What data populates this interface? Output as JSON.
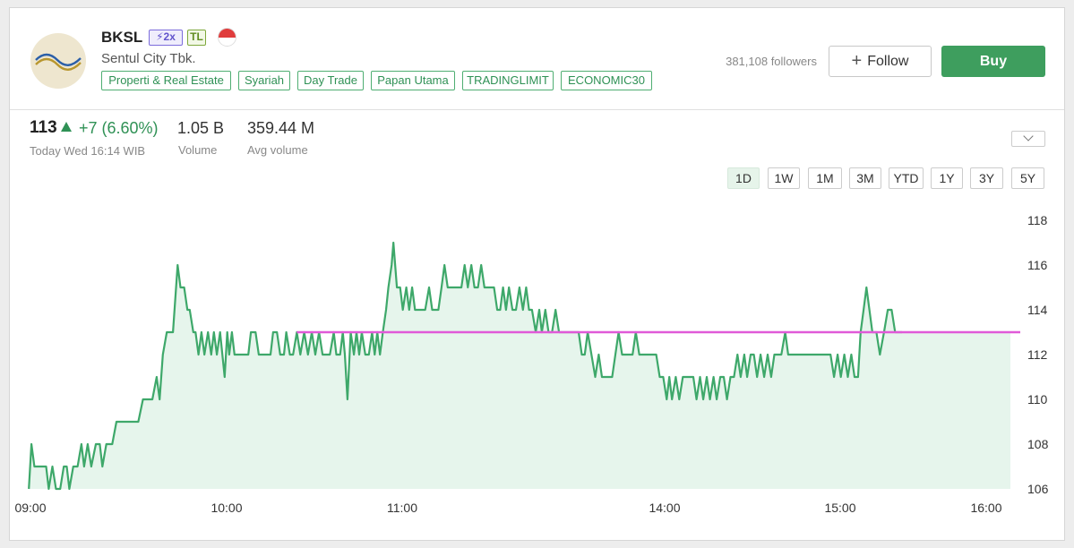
{
  "stock": {
    "ticker": "BKSL",
    "badge_margin": "⚡2x",
    "badge_tl": "TL",
    "company": "Sentul City Tbk.",
    "tags": [
      "Properti & Real Estate",
      "Syariah",
      "Day Trade",
      "Papan Utama",
      "TRADINGLIMIT",
      "ECONOMIC30"
    ],
    "followers": "381,108 followers",
    "follow_label": "Follow",
    "buy_label": "Buy",
    "price": "113",
    "change": "+7 (6.60%)",
    "time": "Today Wed 16:14 WIB",
    "volume_value": "1.05 B",
    "volume_label": "Volume",
    "avg_volume_value": "359.44 M",
    "avg_volume_label": "Avg volume"
  },
  "ranges": [
    "1D",
    "1W",
    "1M",
    "3M",
    "YTD",
    "1Y",
    "3Y",
    "5Y"
  ],
  "active_range": "1D",
  "colors": {
    "up": "#3e9e5e",
    "line": "#3ea86a",
    "fill": "#e6f5ec",
    "reference": "#e05ad8",
    "brand_blue": "#2b5fa8",
    "brand_gold": "#b8962e"
  },
  "chart_data": {
    "type": "area",
    "xlabel": "",
    "ylabel": "",
    "ylim": [
      106,
      118
    ],
    "yticks": [
      106,
      108,
      110,
      112,
      114,
      116,
      118
    ],
    "x_ticks": [
      {
        "label": "09:00",
        "minutes": 540
      },
      {
        "label": "10:00",
        "minutes": 600
      },
      {
        "label": "11:00",
        "minutes": 660
      },
      {
        "label": "14:00",
        "minutes": 750
      },
      {
        "label": "15:00",
        "minutes": 810
      },
      {
        "label": "16:00",
        "minutes": 860
      }
    ],
    "reference": {
      "value": 113,
      "from_minutes": 624,
      "to_minutes": 870
    },
    "series": [
      {
        "points": [
          [
            539.5,
            106
          ],
          [
            540.3,
            108
          ],
          [
            541.2,
            107
          ],
          [
            543.1,
            107
          ],
          [
            544.8,
            107
          ],
          [
            545.6,
            106
          ],
          [
            546.7,
            107
          ],
          [
            547.8,
            106
          ],
          [
            549.1,
            106
          ],
          [
            550.2,
            107
          ],
          [
            551.1,
            107
          ],
          [
            551.9,
            106
          ],
          [
            553.1,
            107
          ],
          [
            554.4,
            107
          ],
          [
            555.6,
            108
          ],
          [
            556.4,
            107
          ],
          [
            557.5,
            108
          ],
          [
            558.6,
            107
          ],
          [
            560.0,
            108
          ],
          [
            561.2,
            108
          ],
          [
            562.0,
            107
          ],
          [
            563.2,
            108
          ],
          [
            565.0,
            108
          ],
          [
            566.3,
            109
          ],
          [
            568.4,
            109
          ],
          [
            569.7,
            109
          ],
          [
            571.1,
            109
          ],
          [
            573.0,
            109
          ],
          [
            574.4,
            110
          ],
          [
            576.0,
            110
          ],
          [
            577.3,
            110
          ],
          [
            578.6,
            111
          ],
          [
            579.5,
            110
          ],
          [
            580.5,
            112
          ],
          [
            581.7,
            113
          ],
          [
            582.7,
            113
          ],
          [
            583.6,
            113
          ],
          [
            585.0,
            116
          ],
          [
            585.9,
            115
          ],
          [
            587.0,
            115
          ],
          [
            588.0,
            114
          ],
          [
            588.7,
            114
          ],
          [
            589.8,
            113
          ],
          [
            590.5,
            113
          ],
          [
            591.4,
            112
          ],
          [
            592.3,
            113
          ],
          [
            593.2,
            112
          ],
          [
            594.3,
            113
          ],
          [
            595.3,
            112
          ],
          [
            596.1,
            113
          ],
          [
            597.0,
            112
          ],
          [
            598.0,
            113
          ],
          [
            599.4,
            111
          ],
          [
            600.2,
            113
          ],
          [
            600.9,
            112
          ],
          [
            601.8,
            113
          ],
          [
            602.7,
            112
          ],
          [
            603.9,
            112
          ],
          [
            605.0,
            112
          ],
          [
            606.3,
            112
          ],
          [
            607.4,
            112
          ],
          [
            608.3,
            113
          ],
          [
            609.9,
            113
          ],
          [
            611.0,
            112
          ],
          [
            612.1,
            112
          ],
          [
            613.0,
            112
          ],
          [
            614.2,
            112
          ],
          [
            615.0,
            112
          ],
          [
            615.9,
            113
          ],
          [
            617.2,
            113
          ],
          [
            618.3,
            112
          ],
          [
            619.6,
            112
          ],
          [
            620.4,
            113
          ],
          [
            621.6,
            112
          ],
          [
            622.7,
            112
          ],
          [
            624.0,
            113
          ],
          [
            625.2,
            112
          ],
          [
            626.5,
            113
          ],
          [
            627.8,
            112
          ],
          [
            629.1,
            113
          ],
          [
            630.3,
            112
          ],
          [
            631.6,
            113
          ],
          [
            632.8,
            112
          ],
          [
            634.0,
            112
          ],
          [
            635.3,
            112
          ],
          [
            636.6,
            113
          ],
          [
            637.5,
            112
          ],
          [
            638.8,
            112
          ],
          [
            639.7,
            113
          ],
          [
            640.4,
            112
          ],
          [
            641.3,
            110
          ],
          [
            642.4,
            113
          ],
          [
            643.5,
            112
          ],
          [
            644.4,
            113
          ],
          [
            645.3,
            112
          ],
          [
            646.2,
            113
          ],
          [
            647.4,
            112
          ],
          [
            648.6,
            112
          ],
          [
            649.7,
            113
          ],
          [
            650.6,
            112
          ],
          [
            651.5,
            113
          ],
          [
            652.4,
            112
          ],
          [
            653.4,
            113
          ],
          [
            654.5,
            114
          ],
          [
            655.3,
            115
          ],
          [
            656.4,
            116
          ],
          [
            657.0,
            117
          ],
          [
            658.2,
            115
          ],
          [
            659.3,
            115
          ],
          [
            660.2,
            114
          ],
          [
            661.4,
            115
          ],
          [
            662.4,
            114
          ],
          [
            663.4,
            115
          ],
          [
            664.4,
            114
          ],
          [
            665.6,
            114
          ],
          [
            666.8,
            114
          ],
          [
            667.9,
            114
          ],
          [
            669.2,
            115
          ],
          [
            670.3,
            114
          ],
          [
            671.2,
            114
          ],
          [
            672.4,
            114
          ],
          [
            673.5,
            115
          ],
          [
            674.5,
            116
          ],
          [
            675.6,
            115
          ],
          [
            676.8,
            115
          ],
          [
            678.0,
            115
          ],
          [
            679.2,
            115
          ],
          [
            680.3,
            115
          ],
          [
            681.4,
            116
          ],
          [
            682.5,
            115
          ],
          [
            683.7,
            116
          ],
          [
            684.8,
            115
          ],
          [
            686.0,
            115
          ],
          [
            687.1,
            116
          ],
          [
            688.2,
            115
          ],
          [
            689.2,
            115
          ],
          [
            690.2,
            115
          ],
          [
            691.5,
            115
          ],
          [
            692.6,
            114
          ],
          [
            693.6,
            114
          ],
          [
            694.6,
            115
          ],
          [
            695.6,
            114
          ],
          [
            696.6,
            115
          ],
          [
            697.8,
            114
          ],
          [
            699.0,
            114
          ],
          [
            700.2,
            115
          ],
          [
            701.4,
            114
          ],
          [
            702.5,
            115
          ],
          [
            703.5,
            114
          ],
          [
            704.5,
            114
          ],
          [
            705.8,
            113
          ],
          [
            707.0,
            114
          ],
          [
            707.9,
            113
          ],
          [
            709.1,
            114
          ],
          [
            710.2,
            113
          ],
          [
            711.4,
            113
          ],
          [
            712.6,
            114
          ],
          [
            713.8,
            113
          ],
          [
            715.0,
            113
          ],
          [
            716.2,
            113
          ],
          [
            717.4,
            113
          ],
          [
            718.5,
            113
          ],
          [
            719.6,
            113
          ],
          [
            720.5,
            113
          ],
          [
            721.6,
            112
          ],
          [
            722.6,
            112
          ],
          [
            723.6,
            113
          ],
          [
            724.9,
            112
          ],
          [
            726.2,
            111
          ],
          [
            727.4,
            112
          ],
          [
            728.5,
            111
          ],
          [
            729.5,
            111
          ],
          [
            730.8,
            111
          ],
          [
            732.0,
            111
          ],
          [
            733.1,
            112
          ],
          [
            734.2,
            113
          ],
          [
            735.4,
            112
          ],
          [
            736.6,
            112
          ],
          [
            737.8,
            112
          ],
          [
            739.0,
            112
          ],
          [
            740.1,
            113
          ],
          [
            741.3,
            112
          ],
          [
            742.5,
            112
          ],
          [
            743.6,
            112
          ],
          [
            744.8,
            112
          ],
          [
            745.9,
            112
          ],
          [
            747.1,
            112
          ],
          [
            748.3,
            111
          ],
          [
            749.5,
            111
          ],
          [
            750.7,
            110
          ],
          [
            751.6,
            111
          ],
          [
            752.5,
            110
          ],
          [
            753.8,
            111
          ],
          [
            755.0,
            110
          ],
          [
            756.2,
            111
          ],
          [
            757.4,
            111
          ],
          [
            758.6,
            111
          ],
          [
            759.8,
            111
          ],
          [
            760.9,
            110
          ],
          [
            762.1,
            111
          ],
          [
            763.2,
            110
          ],
          [
            764.4,
            111
          ],
          [
            765.5,
            110
          ],
          [
            766.7,
            111
          ],
          [
            767.8,
            110
          ],
          [
            769.0,
            111
          ],
          [
            770.2,
            111
          ],
          [
            771.3,
            110
          ],
          [
            772.5,
            111
          ],
          [
            773.7,
            111
          ],
          [
            774.9,
            112
          ],
          [
            776.0,
            111
          ],
          [
            777.2,
            112
          ],
          [
            778.2,
            111
          ],
          [
            779.4,
            112
          ],
          [
            780.5,
            112
          ],
          [
            781.6,
            111
          ],
          [
            782.8,
            112
          ],
          [
            784.0,
            111
          ],
          [
            785.2,
            112
          ],
          [
            786.4,
            111
          ],
          [
            787.5,
            112
          ],
          [
            788.7,
            112
          ],
          [
            789.9,
            112
          ],
          [
            791.2,
            113
          ],
          [
            792.2,
            112
          ],
          [
            793.4,
            112
          ],
          [
            794.5,
            112
          ],
          [
            795.7,
            112
          ],
          [
            796.9,
            112
          ],
          [
            798.1,
            112
          ],
          [
            799.4,
            112
          ],
          [
            800.6,
            112
          ],
          [
            801.8,
            112
          ],
          [
            803.0,
            112
          ],
          [
            804.2,
            112
          ],
          [
            805.4,
            112
          ],
          [
            806.7,
            112
          ],
          [
            807.9,
            111
          ],
          [
            809.1,
            112
          ],
          [
            810.2,
            111
          ],
          [
            811.4,
            112
          ],
          [
            812.6,
            111
          ],
          [
            813.8,
            112
          ],
          [
            814.9,
            111
          ],
          [
            816.1,
            111
          ],
          [
            817.0,
            113
          ],
          [
            818.0,
            114
          ],
          [
            819.0,
            115
          ],
          [
            820.0,
            114
          ],
          [
            821.0,
            113
          ],
          [
            822.4,
            113
          ],
          [
            823.6,
            112
          ],
          [
            825.0,
            113
          ],
          [
            826.3,
            114
          ],
          [
            827.6,
            114
          ],
          [
            828.8,
            113
          ],
          [
            830.0,
            113
          ],
          [
            831.2,
            113
          ]
        ]
      }
    ]
  }
}
